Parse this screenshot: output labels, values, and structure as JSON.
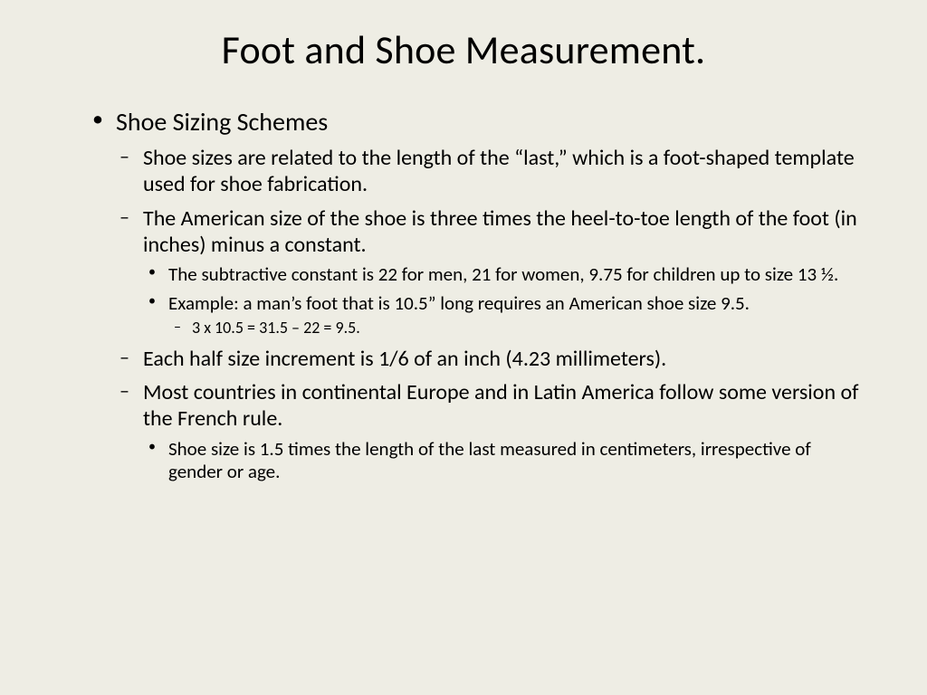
{
  "background_color": "#eeede4",
  "text_color": "#000000",
  "font_family": "Calibri",
  "title": {
    "text": "Foot and Shoe Measurement.",
    "fontsize": 44,
    "weight": 400,
    "align": "center"
  },
  "bullets": {
    "lvl1_marker": "•",
    "lvl2_marker": "–",
    "lvl3_marker": "•",
    "lvl4_marker": "–",
    "lvl1_fontsize": 28,
    "lvl2_fontsize": 24,
    "lvl3_fontsize": 21,
    "lvl4_fontsize": 18
  },
  "content": {
    "heading": "Shoe Sizing Schemes",
    "items": [
      "Shoe sizes are related to the length of the “last,” which is a foot-shaped template used for shoe fabrication.",
      "The American size of the shoe is three times the heel-to-toe length of the foot (in inches) minus a constant.",
      "Each half size increment is 1/6 of an inch (4.23 millimeters).",
      "Most countries in continental Europe and in Latin America follow some version of the French rule."
    ],
    "american_sub": [
      "The subtractive constant is 22 for men, 21 for women, 9.75 for children up to size 13 ½.",
      "Example:  a man’s foot that is 10.5” long requires an American shoe size 9.5."
    ],
    "example_calc": "3 x 10.5 = 31.5 – 22 = 9.5.",
    "french_sub": "Shoe size is 1.5 times the length of the last measured in centimeters, irrespective of gender or age."
  }
}
